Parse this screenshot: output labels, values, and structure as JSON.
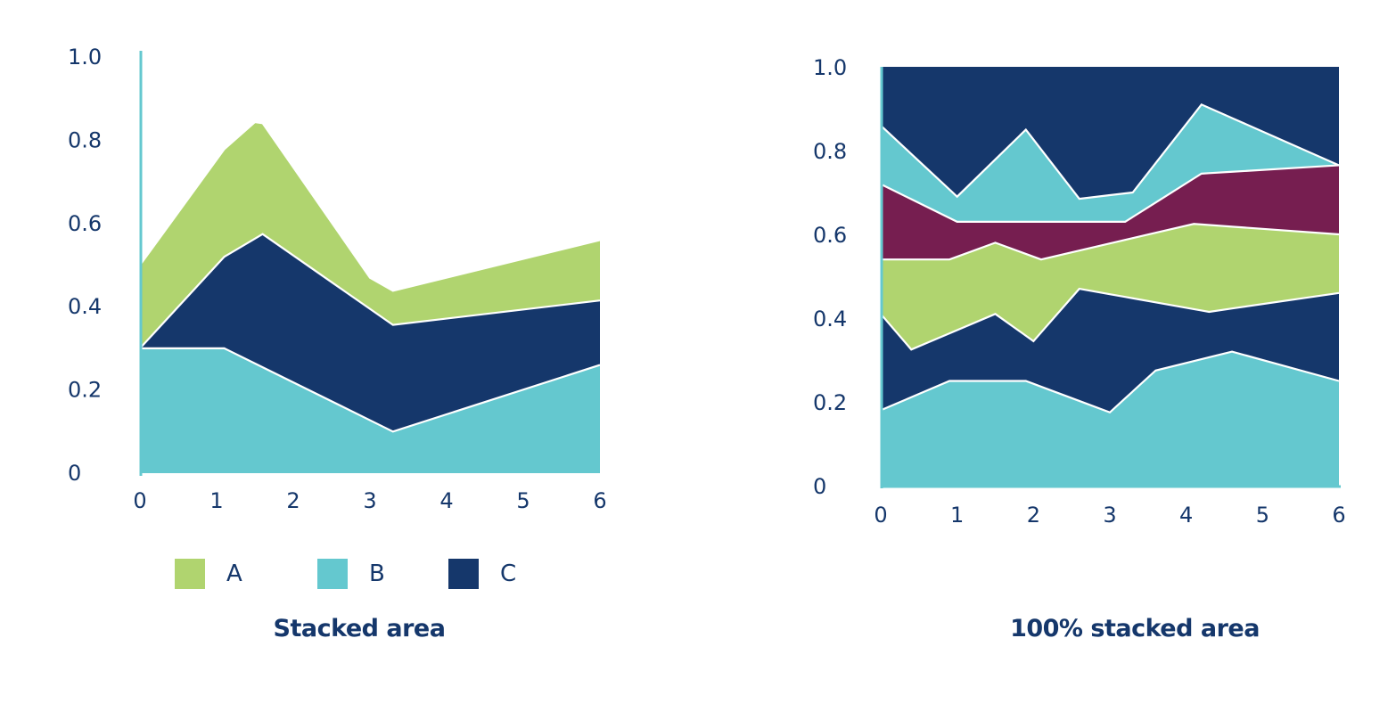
{
  "colors": {
    "A": "#b0d46f",
    "B": "#64c8cf",
    "C": "#15376b",
    "D": "#761e50",
    "text": "#15376b",
    "axis": "#64c8cf"
  },
  "chart_data": [
    {
      "type": "area",
      "stacked": true,
      "title": "Stacked area",
      "xlim": [
        0,
        6
      ],
      "ylim": [
        0,
        1.0
      ],
      "x_ticks": [
        "0",
        "1",
        "2",
        "3",
        "4",
        "5",
        "6"
      ],
      "y_ticks": [
        "0",
        "0.2",
        "0.4",
        "0.6",
        "0.8",
        "1.0"
      ],
      "legend_position": "bottom",
      "series": [
        {
          "name": "B",
          "color_key": "B",
          "x": [
            0,
            1.1,
            3.3,
            6
          ],
          "values": [
            0.3,
            0.3,
            0.1,
            0.26
          ]
        },
        {
          "name": "C",
          "color_key": "C",
          "x": [
            0,
            1.6,
            6
          ],
          "values": [
            0.0,
            0.32,
            0.155
          ]
        },
        {
          "name": "A",
          "color_key": "A",
          "x": [
            0,
            1.5,
            3.0,
            6
          ],
          "values": [
            0.2,
            0.28,
            0.075,
            0.145
          ]
        }
      ],
      "legend": [
        {
          "label": "A",
          "color_key": "A"
        },
        {
          "label": "B",
          "color_key": "B"
        },
        {
          "label": "C",
          "color_key": "C"
        }
      ]
    },
    {
      "type": "area",
      "stacked": true,
      "normalized": true,
      "title": "100% stacked area",
      "xlim": [
        0,
        6
      ],
      "ylim": [
        0,
        1.0
      ],
      "x_ticks": [
        "0",
        "1",
        "2",
        "3",
        "4",
        "5",
        "6"
      ],
      "y_ticks": [
        "0",
        "0.2",
        "0.4",
        "0.6",
        "0.8",
        "1.0"
      ],
      "boundaries": [
        {
          "x": [
            0,
            0.9,
            1.9,
            3.0,
            3.6,
            4.6,
            6
          ],
          "values": [
            0.18,
            0.25,
            0.25,
            0.175,
            0.275,
            0.32,
            0.25
          ]
        },
        {
          "x": [
            0,
            0.4,
            1.5,
            2.0,
            2.6,
            4.3,
            6
          ],
          "values": [
            0.41,
            0.325,
            0.41,
            0.345,
            0.47,
            0.415,
            0.46
          ]
        },
        {
          "x": [
            0,
            0.9,
            1.5,
            2.1,
            4.1,
            6
          ],
          "values": [
            0.54,
            0.54,
            0.58,
            0.54,
            0.625,
            0.6
          ]
        },
        {
          "x": [
            0,
            1.0,
            3.2,
            4.2,
            6
          ],
          "values": [
            0.72,
            0.63,
            0.63,
            0.745,
            0.765
          ]
        },
        {
          "x": [
            0,
            1.0,
            1.9,
            2.6,
            3.3,
            4.2,
            6
          ],
          "values": [
            0.86,
            0.69,
            0.85,
            0.685,
            0.7,
            0.91,
            0.765
          ]
        }
      ],
      "bands": [
        {
          "color_key": "B"
        },
        {
          "color_key": "C"
        },
        {
          "color_key": "A"
        },
        {
          "color_key": "D"
        },
        {
          "color_key": "B"
        },
        {
          "color_key": "C"
        }
      ]
    }
  ]
}
